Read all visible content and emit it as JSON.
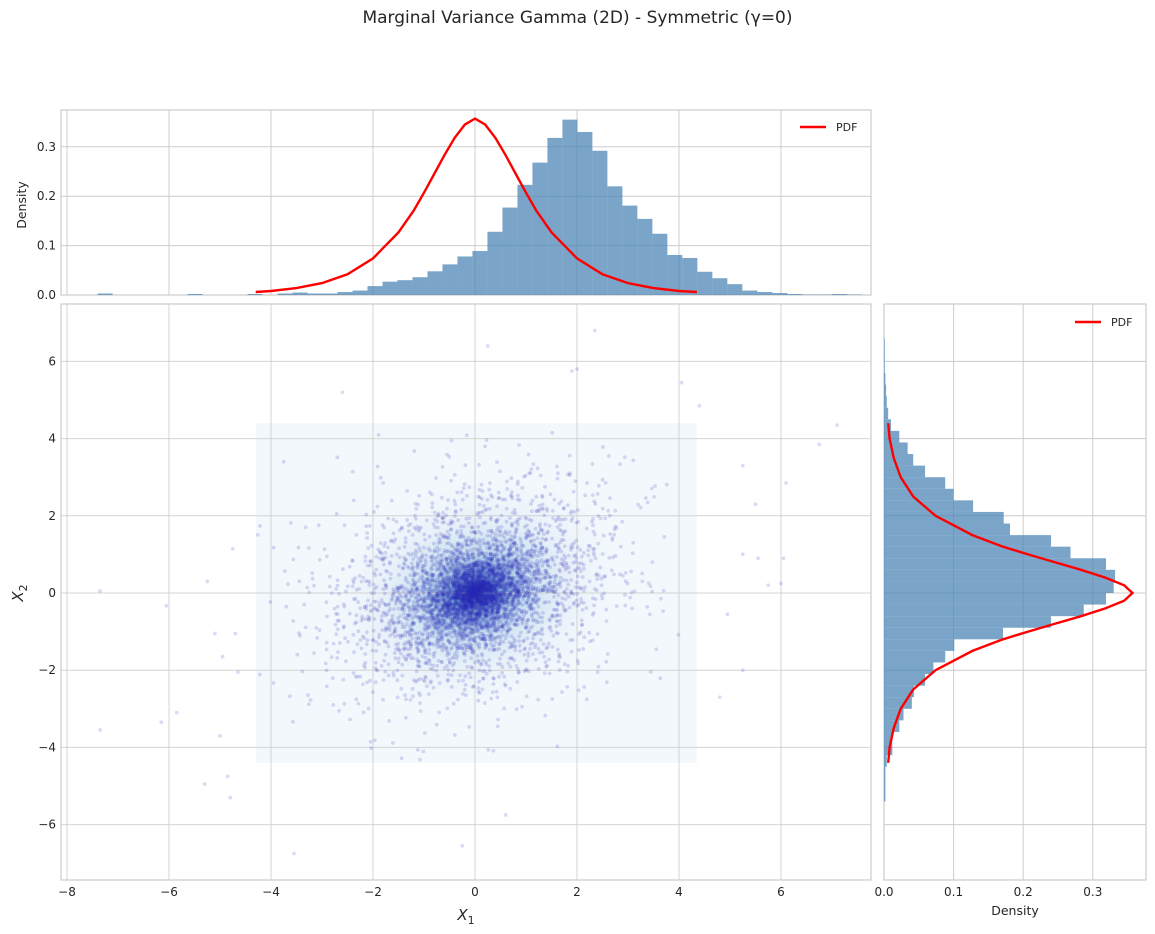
{
  "figure": {
    "title": "Marginal Variance Gamma (2D) - Symmetric (γ=0)",
    "background": "#ffffff",
    "grid_color": "#cccccc",
    "hist_color": "#4682b4",
    "hist_alpha": 0.72,
    "pdf_color": "#ff0000",
    "scatter_color": "#2b2bb5",
    "kde_color": "#08306b"
  },
  "chart_data": [
    {
      "id": "top_marginal",
      "type": "bar",
      "title": "",
      "xlabel": "",
      "ylabel": "Density",
      "xlim": [
        -8.12,
        7.76
      ],
      "ylim": [
        0,
        0.375
      ],
      "yticks": [
        0.0,
        0.1,
        0.2,
        0.3
      ],
      "ytick_labels": [
        "0.0",
        "0.1",
        "0.2",
        "0.3"
      ],
      "xticks": [
        -8,
        -6,
        -4,
        -2,
        0,
        2,
        4,
        6
      ],
      "grid": true,
      "legend": {
        "entries": [
          "PDF"
        ],
        "position": "upper right"
      },
      "histogram": {
        "bin_edges_start": -7.4,
        "bin_width": 0.294,
        "heights": [
          0.003,
          0,
          0,
          0,
          0,
          0,
          0.002,
          0,
          0,
          0,
          0.002,
          0,
          0.003,
          0.005,
          0.003,
          0.003,
          0.006,
          0.009,
          0.018,
          0.027,
          0.03,
          0.036,
          0.048,
          0.062,
          0.078,
          0.089,
          0.128,
          0.177,
          0.223,
          0.268,
          0.318,
          0.355,
          0.33,
          0.292,
          0.22,
          0.181,
          0.154,
          0.124,
          0.081,
          0.075,
          0.047,
          0.034,
          0.022,
          0.009,
          0.006,
          0.004,
          0.002,
          0.001,
          0.001,
          0.002,
          0.001
        ]
      },
      "pdf_curve": {
        "label": "PDF",
        "x": [
          -4.3,
          -4.0,
          -3.5,
          -3.0,
          -2.5,
          -2.0,
          -1.5,
          -1.2,
          -1.0,
          -0.8,
          -0.6,
          -0.4,
          -0.2,
          0.0,
          0.2,
          0.4,
          0.6,
          0.8,
          1.0,
          1.2,
          1.5,
          2.0,
          2.5,
          3.0,
          3.5,
          4.0,
          4.35
        ],
        "y": [
          0.006,
          0.008,
          0.014,
          0.024,
          0.042,
          0.074,
          0.127,
          0.171,
          0.207,
          0.245,
          0.283,
          0.318,
          0.345,
          0.357,
          0.345,
          0.318,
          0.283,
          0.245,
          0.207,
          0.171,
          0.127,
          0.074,
          0.042,
          0.024,
          0.014,
          0.008,
          0.006
        ]
      }
    },
    {
      "id": "joint_scatter",
      "type": "scatter",
      "title": "",
      "xlabel": "X₁",
      "ylabel": "X₂",
      "xlim": [
        -8.12,
        7.76
      ],
      "ylim": [
        -7.44,
        7.49
      ],
      "xticks": [
        -8,
        -6,
        -4,
        -2,
        0,
        2,
        4,
        6
      ],
      "xtick_labels": [
        "−8",
        "−6",
        "−4",
        "−2",
        "0",
        "2",
        "4",
        "6"
      ],
      "yticks": [
        -6,
        -4,
        -2,
        0,
        2,
        4,
        6
      ],
      "ytick_labels": [
        "−6",
        "−4",
        "−2",
        "0",
        "2",
        "4",
        "6"
      ],
      "grid": true,
      "kde_region": {
        "x": [
          -4.3,
          4.35
        ],
        "y": [
          -4.4,
          4.4
        ]
      },
      "density_center": [
        0,
        0
      ],
      "n_points_approx": 5000,
      "outliers": [
        [
          -7.35,
          0.05
        ],
        [
          -6.05,
          -0.33
        ],
        [
          -5.85,
          -3.1
        ],
        [
          -6.15,
          -3.35
        ],
        [
          -7.35,
          -3.55
        ],
        [
          -5.0,
          -3.7
        ],
        [
          -5.3,
          -4.95
        ],
        [
          -4.85,
          -4.75
        ],
        [
          -4.8,
          -5.3
        ],
        [
          -5.1,
          -1.05
        ],
        [
          -4.95,
          -1.65
        ],
        [
          -4.65,
          -2.05
        ],
        [
          -4.7,
          -1.05
        ],
        [
          -4.75,
          1.15
        ],
        [
          -5.25,
          0.3
        ],
        [
          -3.55,
          -6.75
        ],
        [
          -0.25,
          -6.55
        ],
        [
          0.6,
          -5.75
        ],
        [
          4.95,
          -0.55
        ],
        [
          5.25,
          1.0
        ],
        [
          5.55,
          0.9
        ],
        [
          6.05,
          0.9
        ],
        [
          5.75,
          0.2
        ],
        [
          6.0,
          0.25
        ],
        [
          5.25,
          3.3
        ],
        [
          6.75,
          3.85
        ],
        [
          7.1,
          4.35
        ],
        [
          4.4,
          4.85
        ],
        [
          4.05,
          5.45
        ],
        [
          2.35,
          6.8
        ],
        [
          0.25,
          6.4
        ],
        [
          2.0,
          5.8
        ],
        [
          1.9,
          5.75
        ],
        [
          -2.6,
          5.2
        ],
        [
          5.5,
          2.3
        ],
        [
          6.1,
          2.85
        ],
        [
          -3.75,
          3.4
        ],
        [
          5.25,
          -2.0
        ],
        [
          4.8,
          -2.7
        ]
      ]
    },
    {
      "id": "right_marginal",
      "type": "bar",
      "orientation": "horizontal",
      "title": "",
      "xlabel": "Density",
      "ylabel": "",
      "xlim": [
        0,
        0.376
      ],
      "ylim": [
        -7.44,
        7.49
      ],
      "xticks": [
        0.0,
        0.1,
        0.2,
        0.3
      ],
      "xtick_labels": [
        "0.0",
        "0.1",
        "0.2",
        "0.3"
      ],
      "grid": true,
      "legend": {
        "entries": [
          "PDF"
        ],
        "position": "upper right"
      },
      "histogram": {
        "bin_edges_start": -5.4,
        "bin_width": 0.3,
        "heights": [
          0.002,
          0.002,
          0.002,
          0.004,
          0.012,
          0.012,
          0.022,
          0.028,
          0.04,
          0.043,
          0.059,
          0.071,
          0.088,
          0.101,
          0.171,
          0.24,
          0.287,
          0.319,
          0.33,
          0.332,
          0.319,
          0.268,
          0.24,
          0.181,
          0.172,
          0.128,
          0.1,
          0.088,
          0.059,
          0.042,
          0.034,
          0.022,
          0.01,
          0.006,
          0.004,
          0.003,
          0.002,
          0.001,
          0.001,
          0.001
        ]
      },
      "pdf_curve": {
        "label": "PDF",
        "y": [
          -4.4,
          -4.0,
          -3.5,
          -3.0,
          -2.5,
          -2.0,
          -1.5,
          -1.2,
          -1.0,
          -0.8,
          -0.6,
          -0.4,
          -0.2,
          0.0,
          0.2,
          0.4,
          0.6,
          0.8,
          1.0,
          1.2,
          1.5,
          2.0,
          2.5,
          3.0,
          3.5,
          4.0,
          4.4
        ],
        "x": [
          0.006,
          0.008,
          0.014,
          0.024,
          0.042,
          0.074,
          0.127,
          0.171,
          0.207,
          0.245,
          0.283,
          0.318,
          0.345,
          0.357,
          0.345,
          0.318,
          0.283,
          0.245,
          0.207,
          0.171,
          0.127,
          0.074,
          0.042,
          0.024,
          0.014,
          0.008,
          0.006
        ]
      }
    }
  ]
}
